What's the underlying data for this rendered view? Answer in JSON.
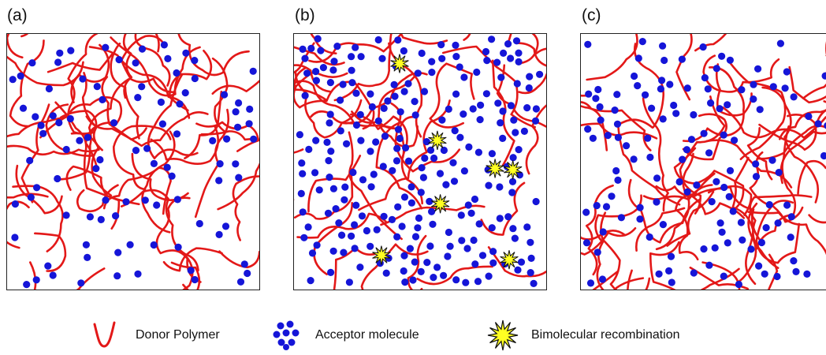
{
  "panels": [
    {
      "label": "(a)",
      "seed": 11,
      "dots": 95,
      "chains": 58,
      "recombinations": 0
    },
    {
      "label": "(b)",
      "seed": 23,
      "dots": 235,
      "chains": 44,
      "recombinations": 7
    },
    {
      "label": "(c)",
      "seed": 37,
      "dots": 125,
      "chains": 60,
      "recombinations": 0
    }
  ],
  "legend": {
    "donor": "Donor Polymer",
    "acceptor": "Acceptor molecule",
    "recombination": "Bimolecular recombination"
  },
  "colors": {
    "donor": "#e31818",
    "acceptor": "#1515d8",
    "recombination_fill": "#ffff22",
    "recombination_stroke": "#111111",
    "border": "#222222"
  }
}
